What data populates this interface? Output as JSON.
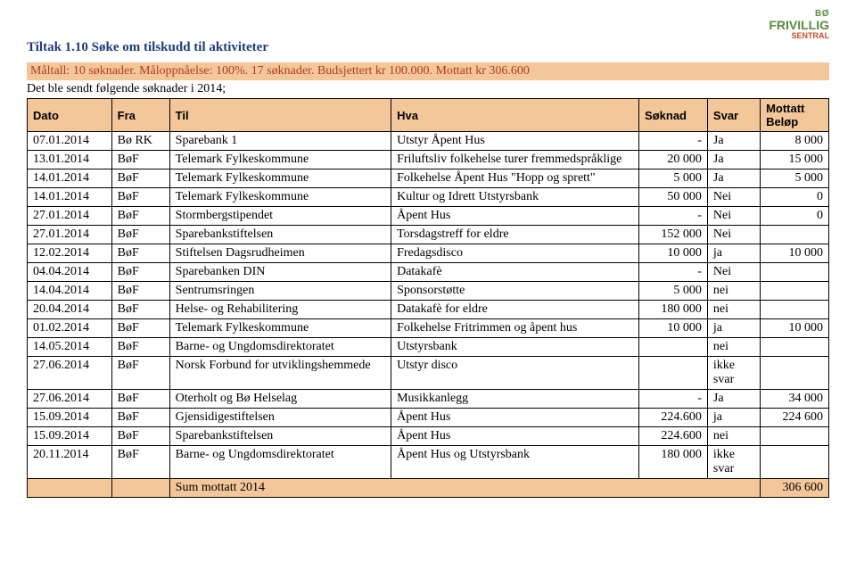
{
  "logo": {
    "top": "BØ",
    "main": "FRIVILLIG",
    "accent": "SENTRAL"
  },
  "title": "Tiltak 1.10 Søke om tilskudd til aktiviteter",
  "subtitle": "Måltall: 10 søknader. Måloppnåelse: 100%. 17 søknader. Budsjettert kr 100.000. Mottatt kr 306.600",
  "intro": "Det ble sendt følgende søknader i 2014;",
  "headers": [
    "Dato",
    "Fra",
    "Til",
    "Hva",
    "Søknad",
    "Svar",
    "Mottatt Beløp"
  ],
  "rows": [
    {
      "dato": "07.01.2014",
      "fra": "Bø RK",
      "til": "Sparebank 1",
      "hva": "Utstyr Åpent Hus",
      "soknad": "-",
      "svar": "Ja",
      "belop": "8 000"
    },
    {
      "dato": "13.01.2014",
      "fra": "BøF",
      "til": "Telemark Fylkeskommune",
      "hva": "Friluftsliv folkehelse turer fremmedspråklige",
      "soknad": "20 000",
      "svar": "Ja",
      "belop": "15 000"
    },
    {
      "dato": "14.01.2014",
      "fra": "BøF",
      "til": "Telemark Fylkeskommune",
      "hva": "Folkehelse Åpent Hus \"Hopp og sprett\"",
      "soknad": "5 000",
      "svar": "Ja",
      "belop": "5 000"
    },
    {
      "dato": "14.01.2014",
      "fra": "BøF",
      "til": "Telemark Fylkeskommune",
      "hva": "Kultur og Idrett Utstyrsbank",
      "soknad": "50 000",
      "svar": "Nei",
      "belop": "0"
    },
    {
      "dato": "27.01.2014",
      "fra": "BøF",
      "til": "Stormbergstipendet",
      "hva": "Åpent Hus",
      "soknad": "-",
      "svar": "Nei",
      "belop": "0"
    },
    {
      "dato": "27.01.2014",
      "fra": "BøF",
      "til": "Sparebankstiftelsen",
      "hva": "Torsdagstreff for eldre",
      "soknad": "152 000",
      "svar": "Nei",
      "belop": ""
    },
    {
      "dato": "12.02.2014",
      "fra": "BøF",
      "til": "Stiftelsen Dagsrudheimen",
      "hva": "Fredagsdisco",
      "soknad": "10 000",
      "svar": "ja",
      "belop": "10 000"
    },
    {
      "dato": "04.04.2014",
      "fra": "BøF",
      "til": "Sparebanken DIN",
      "hva": "Datakafè",
      "soknad": "-",
      "svar": "Nei",
      "belop": ""
    },
    {
      "dato": "14.04.2014",
      "fra": "BøF",
      "til": "Sentrumsringen",
      "hva": "Sponsorstøtte",
      "soknad": "5 000",
      "svar": "nei",
      "belop": ""
    },
    {
      "dato": "20.04.2014",
      "fra": "BøF",
      "til": "Helse- og Rehabilitering",
      "hva": "Datakafè for eldre",
      "soknad": "180 000",
      "svar": "nei",
      "belop": ""
    },
    {
      "dato": "01.02.2014",
      "fra": "BøF",
      "til": "Telemark Fylkeskommune",
      "hva": "Folkehelse Fritrimmen og åpent hus",
      "soknad": "10 000",
      "svar": "ja",
      "belop": "10 000"
    },
    {
      "dato": "14.05.2014",
      "fra": "BøF",
      "til": "Barne- og Ungdomsdirektoratet",
      "hva": "Utstyrsbank",
      "soknad": "",
      "svar": "nei",
      "belop": ""
    },
    {
      "dato": "27.06.2014",
      "fra": "BøF",
      "til": "Norsk Forbund for utviklingshemmede",
      "hva": "Utstyr disco",
      "soknad": "",
      "svar": "ikke svar",
      "belop": ""
    },
    {
      "dato": "27.06.2014",
      "fra": "BøF",
      "til": "Oterholt og Bø Helselag",
      "hva": "Musikkanlegg",
      "soknad": "-",
      "svar": "Ja",
      "belop": "34 000"
    },
    {
      "dato": "15.09.2014",
      "fra": "BøF",
      "til": "Gjensidigestiftelsen",
      "hva": "Åpent Hus",
      "soknad": "224.600",
      "svar": "ja",
      "belop": "224 600"
    },
    {
      "dato": "15.09.2014",
      "fra": "BøF",
      "til": "Sparebankstiftelsen",
      "hva": "Åpent Hus",
      "soknad": "224.600",
      "svar": "nei",
      "belop": ""
    },
    {
      "dato": "20.11.2014",
      "fra": "BøF",
      "til": "Barne- og Ungdomsdirektoratet",
      "hva": "Åpent Hus og Utstyrsbank",
      "soknad": "180 000",
      "svar": "ikke svar",
      "belop": ""
    }
  ],
  "sum": {
    "label": "Sum mottatt 2014",
    "value": "306 600"
  }
}
